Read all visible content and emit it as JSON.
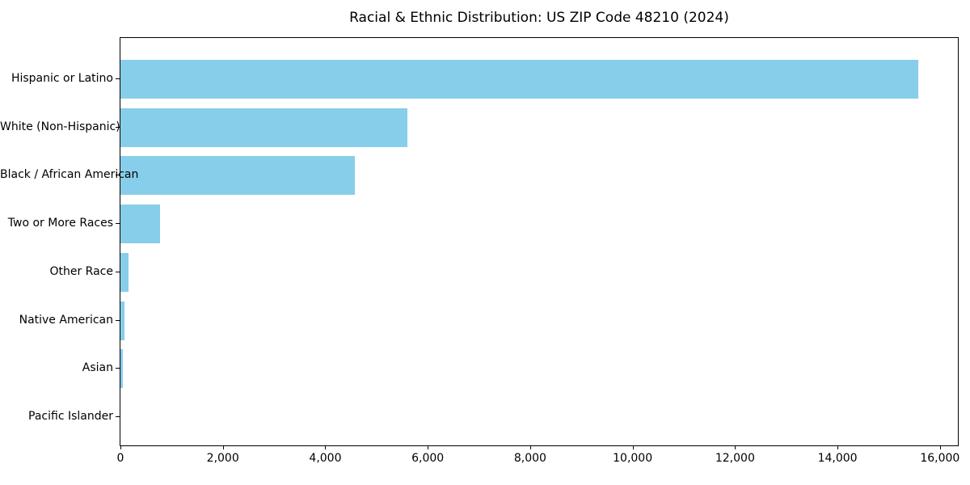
{
  "chart_data": {
    "type": "bar",
    "orientation": "horizontal",
    "title": "Racial & Ethnic Distribution: US ZIP Code 48210 (2024)",
    "categories": [
      "Hispanic or Latino",
      "White (Non-Hispanic)",
      "Black / African American",
      "Two or More Races",
      "Other Race",
      "Native American",
      "Asian",
      "Pacific Islander"
    ],
    "values": [
      15580,
      5600,
      4570,
      770,
      160,
      75,
      47,
      0
    ],
    "xlabel": "",
    "ylabel": "",
    "xlim": [
      0,
      16350
    ],
    "x_ticks": [
      0,
      2000,
      4000,
      6000,
      8000,
      10000,
      12000,
      14000,
      16000
    ],
    "x_tick_labels": [
      "0",
      "2,000",
      "4,000",
      "6,000",
      "8,000",
      "10,000",
      "12,000",
      "14,000",
      "16,000"
    ],
    "bar_color": "#87CEEB",
    "grid": false,
    "legend_position": "none"
  }
}
